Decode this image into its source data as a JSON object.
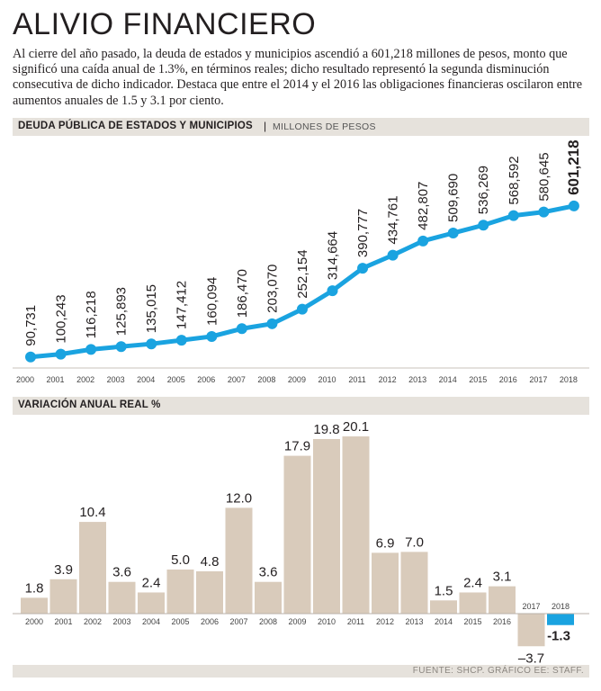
{
  "header": {
    "title": "ALIVIO FINANCIERO",
    "intro": "Al cierre del año pasado, la deuda de estados y municipios ascendió a 601,218 millones de pesos, monto que significó una caída anual de 1.3%, en términos reales; dicho resultado representó la segunda disminución consecutiva de dicho indicador. Destaca que entre el 2014 y el 2016 las obligaciones financieras oscilaron entre aumentos anuales de 1.5 y 3.1 por ciento."
  },
  "section1": {
    "label": "DEUDA PÚBLICA DE ESTADOS Y MUNICIPIOS",
    "separator": "|",
    "unit": "MILLONES DE PESOS"
  },
  "section2": {
    "label": "VARIACIÓN ANUAL REAL %"
  },
  "footer": {
    "source": "FUENTE: SHCP. GRÁFICO EE: STAFF."
  },
  "colors": {
    "line": "#1aa3e0",
    "bar": "#d9cbbb",
    "bar_highlight": "#1aa3e0",
    "band": "#e6e2dc"
  },
  "chart_data": [
    {
      "type": "line",
      "title": "DEUDA PÚBLICA DE ESTADOS Y MUNICIPIOS",
      "ylabel": "MILLONES DE PESOS",
      "categories": [
        "2000",
        "2001",
        "2002",
        "2003",
        "2004",
        "2005",
        "2006",
        "2007",
        "2008",
        "2009",
        "2010",
        "2011",
        "2012",
        "2013",
        "2014",
        "2015",
        "2016",
        "2017",
        "2018"
      ],
      "values": [
        90731,
        100243,
        116218,
        125893,
        135015,
        147412,
        160094,
        186470,
        203070,
        252154,
        314664,
        390777,
        434761,
        482807,
        509690,
        536269,
        568592,
        580645,
        601218
      ],
      "value_labels": [
        "90,731",
        "100,243",
        "116,218",
        "125,893",
        "135,015",
        "147,412",
        "160,094",
        "186,470",
        "203,070",
        "252,154",
        "314,664",
        "390,777",
        "434,761",
        "482,807",
        "509,690",
        "536,269",
        "568,592",
        "580,645",
        "601,218"
      ],
      "ylim": [
        90000,
        610000
      ]
    },
    {
      "type": "bar",
      "title": "VARIACIÓN ANUAL REAL %",
      "categories": [
        "2000",
        "2001",
        "2002",
        "2003",
        "2004",
        "2005",
        "2006",
        "2007",
        "2008",
        "2009",
        "2010",
        "2011",
        "2012",
        "2013",
        "2014",
        "2015",
        "2016",
        "2017",
        "2018"
      ],
      "values": [
        1.8,
        3.9,
        10.4,
        3.6,
        2.4,
        5.0,
        4.8,
        12.0,
        3.6,
        17.9,
        19.8,
        20.1,
        6.9,
        7.0,
        1.5,
        2.4,
        3.1,
        -3.7,
        -1.3
      ],
      "value_labels": [
        "1.8",
        "3.9",
        "10.4",
        "3.6",
        "2.4",
        "5.0",
        "4.8",
        "12.0",
        "3.6",
        "17.9",
        "19.8",
        "20.1",
        "6.9",
        "7.0",
        "1.5",
        "2.4",
        "3.1",
        "–3.7",
        "-1.3"
      ],
      "highlight_index": 18
    }
  ]
}
